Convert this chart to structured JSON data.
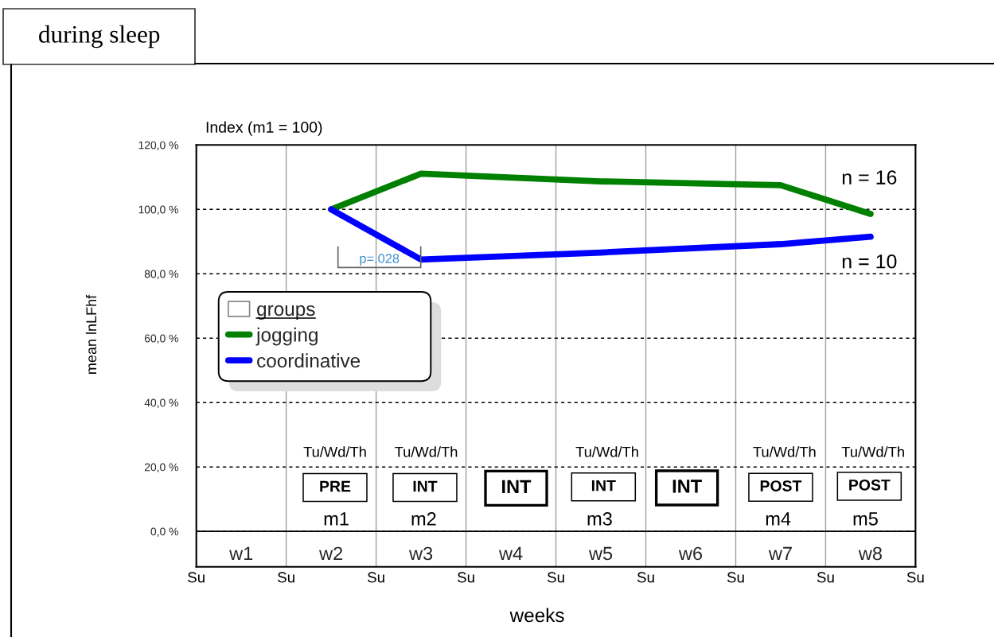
{
  "chart_data": {
    "type": "line",
    "title": "during sleep",
    "subtitle": "Index (m1 = 100)",
    "xlabel": "weeks",
    "ylabel": "mean lnLFhf",
    "legend_title": "groups",
    "categories": [
      "w1",
      "w2",
      "w3",
      "w4",
      "w5",
      "w6",
      "w7",
      "w8"
    ],
    "series": [
      {
        "name": "jogging",
        "color": "#008000",
        "x": [
          "w2",
          "w3",
          "w5",
          "w7",
          "w8"
        ],
        "values": [
          100,
          111.1,
          108.7,
          107.5,
          98.6
        ]
      },
      {
        "name": "coordinative",
        "color": "#0000ff",
        "x": [
          "w2",
          "w3",
          "w5",
          "w7",
          "w8"
        ],
        "values": [
          100,
          84.4,
          86.6,
          89.2,
          91.5
        ]
      }
    ],
    "ylim": [
      -11,
      120
    ],
    "yticks": [
      {
        "value": 0,
        "label": "0,0 %"
      },
      {
        "value": 20,
        "label": "20,0 %"
      },
      {
        "value": 40,
        "label": "40,0 %"
      },
      {
        "value": 60,
        "label": "60,0 %"
      },
      {
        "value": 80,
        "label": "80,0 %"
      },
      {
        "value": 100,
        "label": "100,0 %"
      },
      {
        "value": 120,
        "label": "120,0 %"
      }
    ],
    "grid": true,
    "legend": "center left",
    "ref_lines": [
      {
        "axis": "y",
        "value": 0,
        "color": "#000000",
        "line_style": "solid"
      }
    ],
    "annotations": [
      "Tu/Wd/Th",
      "Tu/Wd/Th",
      "Tu/Wd/Th",
      "Tu/Wd/Th",
      "Tu/Wd/Th",
      "PRE",
      "INT",
      "INT",
      "INT",
      "INT",
      "POST",
      "POST",
      "m1",
      "m2",
      "m3",
      "m4",
      "m5",
      "Su",
      "Su",
      "Su",
      "Su",
      "Su",
      "Su",
      "Su",
      "Su",
      "Su",
      "n = 16",
      "n = 10",
      "p=.028"
    ]
  }
}
